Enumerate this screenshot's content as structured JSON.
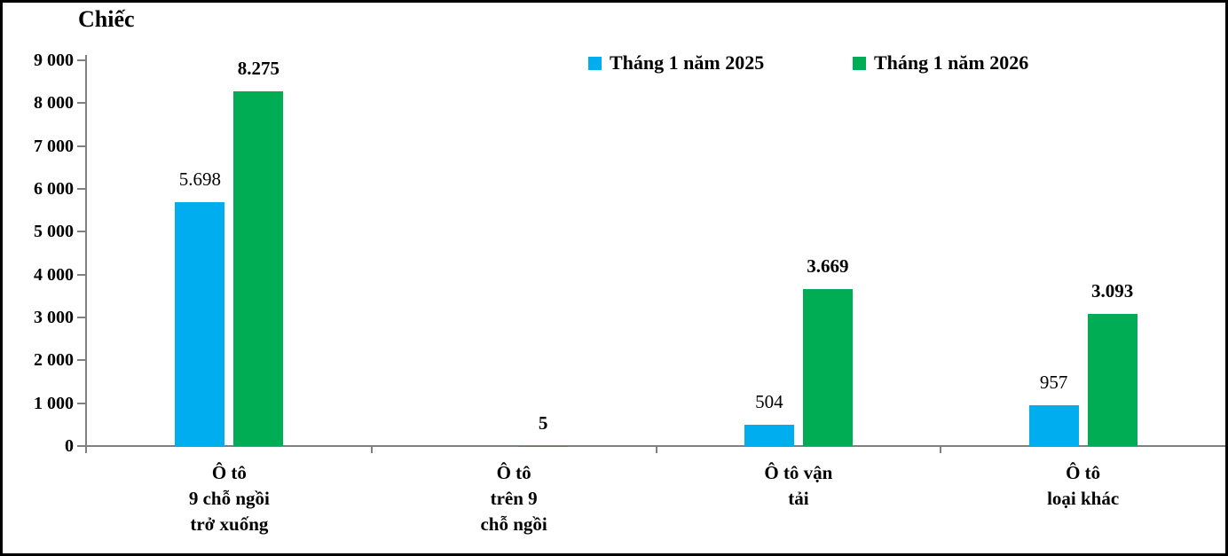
{
  "chart_data": {
    "type": "bar",
    "unit_label": "Chiếc",
    "categories": [
      {
        "lines": [
          "Ô tô",
          "9 chỗ ngồi",
          "trở xuống"
        ]
      },
      {
        "lines": [
          "Ô tô",
          "trên 9",
          "chỗ ngồi"
        ]
      },
      {
        "lines": [
          "Ô tô vận",
          "tải"
        ]
      },
      {
        "lines": [
          "Ô tô",
          "loại khác"
        ]
      }
    ],
    "series": [
      {
        "name": "Tháng 1 năm 2025",
        "color": "#00AEEF",
        "values": [
          5698,
          null,
          504,
          957
        ],
        "labels": [
          "5.698",
          "",
          "504",
          "957"
        ],
        "bold_labels": false
      },
      {
        "name": "Tháng 1 năm 2026",
        "color": "#00AD54",
        "values": [
          8275,
          5,
          3669,
          3093
        ],
        "labels": [
          "8.275",
          "5",
          "3.669",
          "3.093"
        ],
        "bold_labels": true
      }
    ],
    "y_axis": {
      "min": 0,
      "max": 9000,
      "step": 1000,
      "tick_labels": [
        "0",
        "1 000",
        "2 000",
        "3 000",
        "4 000",
        "5 000",
        "6 000",
        "7 000",
        "8 000",
        "9 000"
      ]
    },
    "legend_position": "top",
    "grid": false,
    "axis_color": "#808080"
  }
}
